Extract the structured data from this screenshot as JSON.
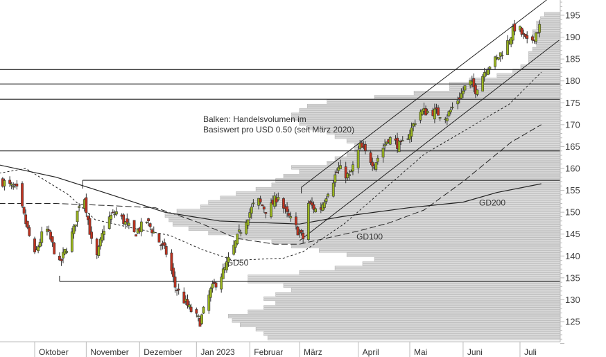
{
  "chart_data": {
    "type": "candlestick",
    "annotation": [
      "Balken: Handelsvolumen im",
      "Basiswert pro USD 0.50 (seit März 2020)"
    ],
    "ylim": [
      119.5,
      198.5
    ],
    "y_ticks": [
      125,
      130,
      135,
      140,
      145,
      150,
      155,
      160,
      165,
      170,
      175,
      180,
      185,
      190,
      195
    ],
    "x_ticks": [
      {
        "date": "2022-10-03",
        "label": "Oktober"
      },
      {
        "date": "2022-11-01",
        "label": "November"
      },
      {
        "date": "2022-12-01",
        "label": "Dezember"
      },
      {
        "date": "2023-01-02",
        "label": "Jan 2023"
      },
      {
        "date": "2023-02-01",
        "label": "Februar"
      },
      {
        "date": "2023-03-01",
        "label": "März"
      },
      {
        "date": "2023-04-03",
        "label": "April"
      },
      {
        "date": "2023-05-02",
        "label": "Mai"
      },
      {
        "date": "2023-06-01",
        "label": "Juni"
      },
      {
        "date": "2023-07-03",
        "label": "Juli"
      }
    ],
    "colors": {
      "up": "#9ab51e",
      "down": "#c1321f",
      "outline": "#333333",
      "volume_bar": "#dcdcdc",
      "volume_edge": "#b4b4b4"
    },
    "price_path": [
      [
        "2022-09-15",
        157
      ],
      [
        "2022-09-23",
        155
      ],
      [
        "2022-10-03",
        140
      ],
      [
        "2022-10-09",
        147
      ],
      [
        "2022-10-17",
        138
      ],
      [
        "2022-10-25",
        146
      ],
      [
        "2022-10-30",
        156
      ],
      [
        "2022-11-06",
        138
      ],
      [
        "2022-11-12",
        148
      ],
      [
        "2022-11-18",
        150
      ],
      [
        "2022-11-28",
        145
      ],
      [
        "2022-12-05",
        148
      ],
      [
        "2022-12-17",
        140
      ],
      [
        "2022-12-21",
        133
      ],
      [
        "2022-12-29",
        128
      ],
      [
        "2023-01-04",
        125
      ],
      [
        "2023-01-10",
        132
      ],
      [
        "2023-01-18",
        137
      ],
      [
        "2023-01-24",
        143
      ],
      [
        "2023-01-28",
        147
      ],
      [
        "2023-02-05",
        153
      ],
      [
        "2023-02-11",
        150
      ],
      [
        "2023-02-17",
        154
      ],
      [
        "2023-02-21",
        150
      ],
      [
        "2023-02-26",
        147
      ],
      [
        "2023-03-03",
        144
      ],
      [
        "2023-03-06",
        152
      ],
      [
        "2023-03-12",
        150
      ],
      [
        "2023-03-17",
        155
      ],
      [
        "2023-03-23",
        160
      ],
      [
        "2023-03-29",
        158
      ],
      [
        "2023-04-04",
        165
      ],
      [
        "2023-04-12",
        161
      ],
      [
        "2023-04-20",
        167
      ],
      [
        "2023-04-27",
        165
      ],
      [
        "2023-05-03",
        169
      ],
      [
        "2023-05-07",
        173
      ],
      [
        "2023-05-15",
        173
      ],
      [
        "2023-05-23",
        172
      ],
      [
        "2023-05-31",
        177
      ],
      [
        "2023-06-04",
        180
      ],
      [
        "2023-06-08",
        178
      ],
      [
        "2023-06-14",
        183
      ],
      [
        "2023-06-20",
        185
      ],
      [
        "2023-06-25",
        188
      ],
      [
        "2023-07-01",
        193
      ],
      [
        "2023-07-05",
        190
      ],
      [
        "2023-07-08",
        188
      ],
      [
        "2023-07-12",
        191
      ],
      [
        "2023-07-15",
        193
      ]
    ],
    "series": [
      {
        "name": "GD200",
        "style": "solid",
        "points": [
          [
            "2022-09-13",
            160.8
          ],
          [
            "2022-10-15",
            158
          ],
          [
            "2022-11-15",
            154
          ],
          [
            "2022-12-15",
            150
          ],
          [
            "2023-01-15",
            148
          ],
          [
            "2023-02-15",
            147.5
          ],
          [
            "2023-03-01",
            147.3
          ],
          [
            "2023-03-25",
            149
          ],
          [
            "2023-05-01",
            151
          ],
          [
            "2023-06-01",
            152.3
          ],
          [
            "2023-06-20",
            154.5
          ],
          [
            "2023-07-15",
            156.5
          ]
        ]
      },
      {
        "name": "GD100",
        "style": "longdash",
        "points": [
          [
            "2022-09-13",
            152
          ],
          [
            "2022-10-15",
            152
          ],
          [
            "2022-11-15",
            151.5
          ],
          [
            "2022-12-10",
            151
          ],
          [
            "2023-01-01",
            148
          ],
          [
            "2023-01-25",
            144
          ],
          [
            "2023-02-15",
            142.7
          ],
          [
            "2023-03-01",
            142.7
          ],
          [
            "2023-04-03",
            145.7
          ],
          [
            "2023-04-20",
            147.5
          ],
          [
            "2023-05-10",
            150.5
          ],
          [
            "2023-06-01",
            157
          ],
          [
            "2023-06-28",
            166
          ],
          [
            "2023-07-15",
            170
          ]
        ]
      },
      {
        "name": "GD50",
        "style": "shortdash",
        "points": [
          [
            "2022-09-13",
            158.9
          ],
          [
            "2022-09-28",
            160
          ],
          [
            "2022-10-22",
            154
          ],
          [
            "2022-11-06",
            148.3
          ],
          [
            "2022-11-28",
            146.3
          ],
          [
            "2022-12-18",
            144.7
          ],
          [
            "2023-01-05",
            141.5
          ],
          [
            "2023-01-23",
            139
          ],
          [
            "2023-02-20",
            139.5
          ],
          [
            "2023-03-03",
            141
          ],
          [
            "2023-03-26",
            147.3
          ],
          [
            "2023-05-10",
            163.2
          ],
          [
            "2023-06-27",
            174.7
          ],
          [
            "2023-07-15",
            182
          ]
        ]
      }
    ],
    "series_labels": [
      {
        "name": "GD200",
        "date": "2023-06-10",
        "price": 151.5
      },
      {
        "name": "GD100",
        "date": "2023-04-02",
        "price": 143.8
      },
      {
        "name": "GD50",
        "date": "2023-01-19",
        "price": 137.8
      }
    ],
    "horizontal_lines": [
      {
        "price": 182.6,
        "from": null
      },
      {
        "price": 179.3,
        "from": null
      },
      {
        "price": 175.8,
        "from": null
      },
      {
        "price": 164.0,
        "from": null
      },
      {
        "price": 157.3,
        "from": "2022-10-30"
      },
      {
        "price": 134.2,
        "from": "2022-10-17"
      }
    ],
    "trend_channel": [
      {
        "from": [
          "2023-03-02",
          155.7
        ],
        "to": [
          "2023-07-18",
          198.5
        ]
      },
      {
        "from": [
          "2023-03-01",
          143.5
        ],
        "to": [
          "2023-07-25",
          189.3
        ]
      }
    ],
    "volume_profile": {
      "price_start": 120,
      "price_step": 1,
      "relative_volume": [
        0.73,
        0.74,
        0.75,
        0.77,
        0.81,
        0.83,
        0.84,
        0.79,
        0.75,
        0.72,
        0.75,
        0.72,
        0.68,
        0.7,
        0.79,
        0.79,
        0.66,
        0.57,
        0.5,
        0.47,
        0.54,
        0.61,
        0.68,
        0.73,
        0.82,
        0.89,
        0.94,
        0.98,
        0.99,
        1.0,
        0.97,
        0.91,
        0.89,
        0.86,
        0.82,
        0.77,
        0.73,
        0.72,
        0.7,
        0.66,
        0.68,
        0.59,
        0.57,
        0.54,
        0.52,
        0.52,
        0.54,
        0.57,
        0.59,
        0.64,
        0.66,
        0.68,
        0.68,
        0.66,
        0.64,
        0.59,
        0.47,
        0.37,
        0.28,
        0.28,
        0.23,
        0.16,
        0.12,
        0.1,
        0.08,
        0.08,
        0.08,
        0.07,
        0.06,
        0.06,
        0.07,
        0.07,
        0.06,
        0.06,
        0.05,
        0.04
      ]
    }
  }
}
